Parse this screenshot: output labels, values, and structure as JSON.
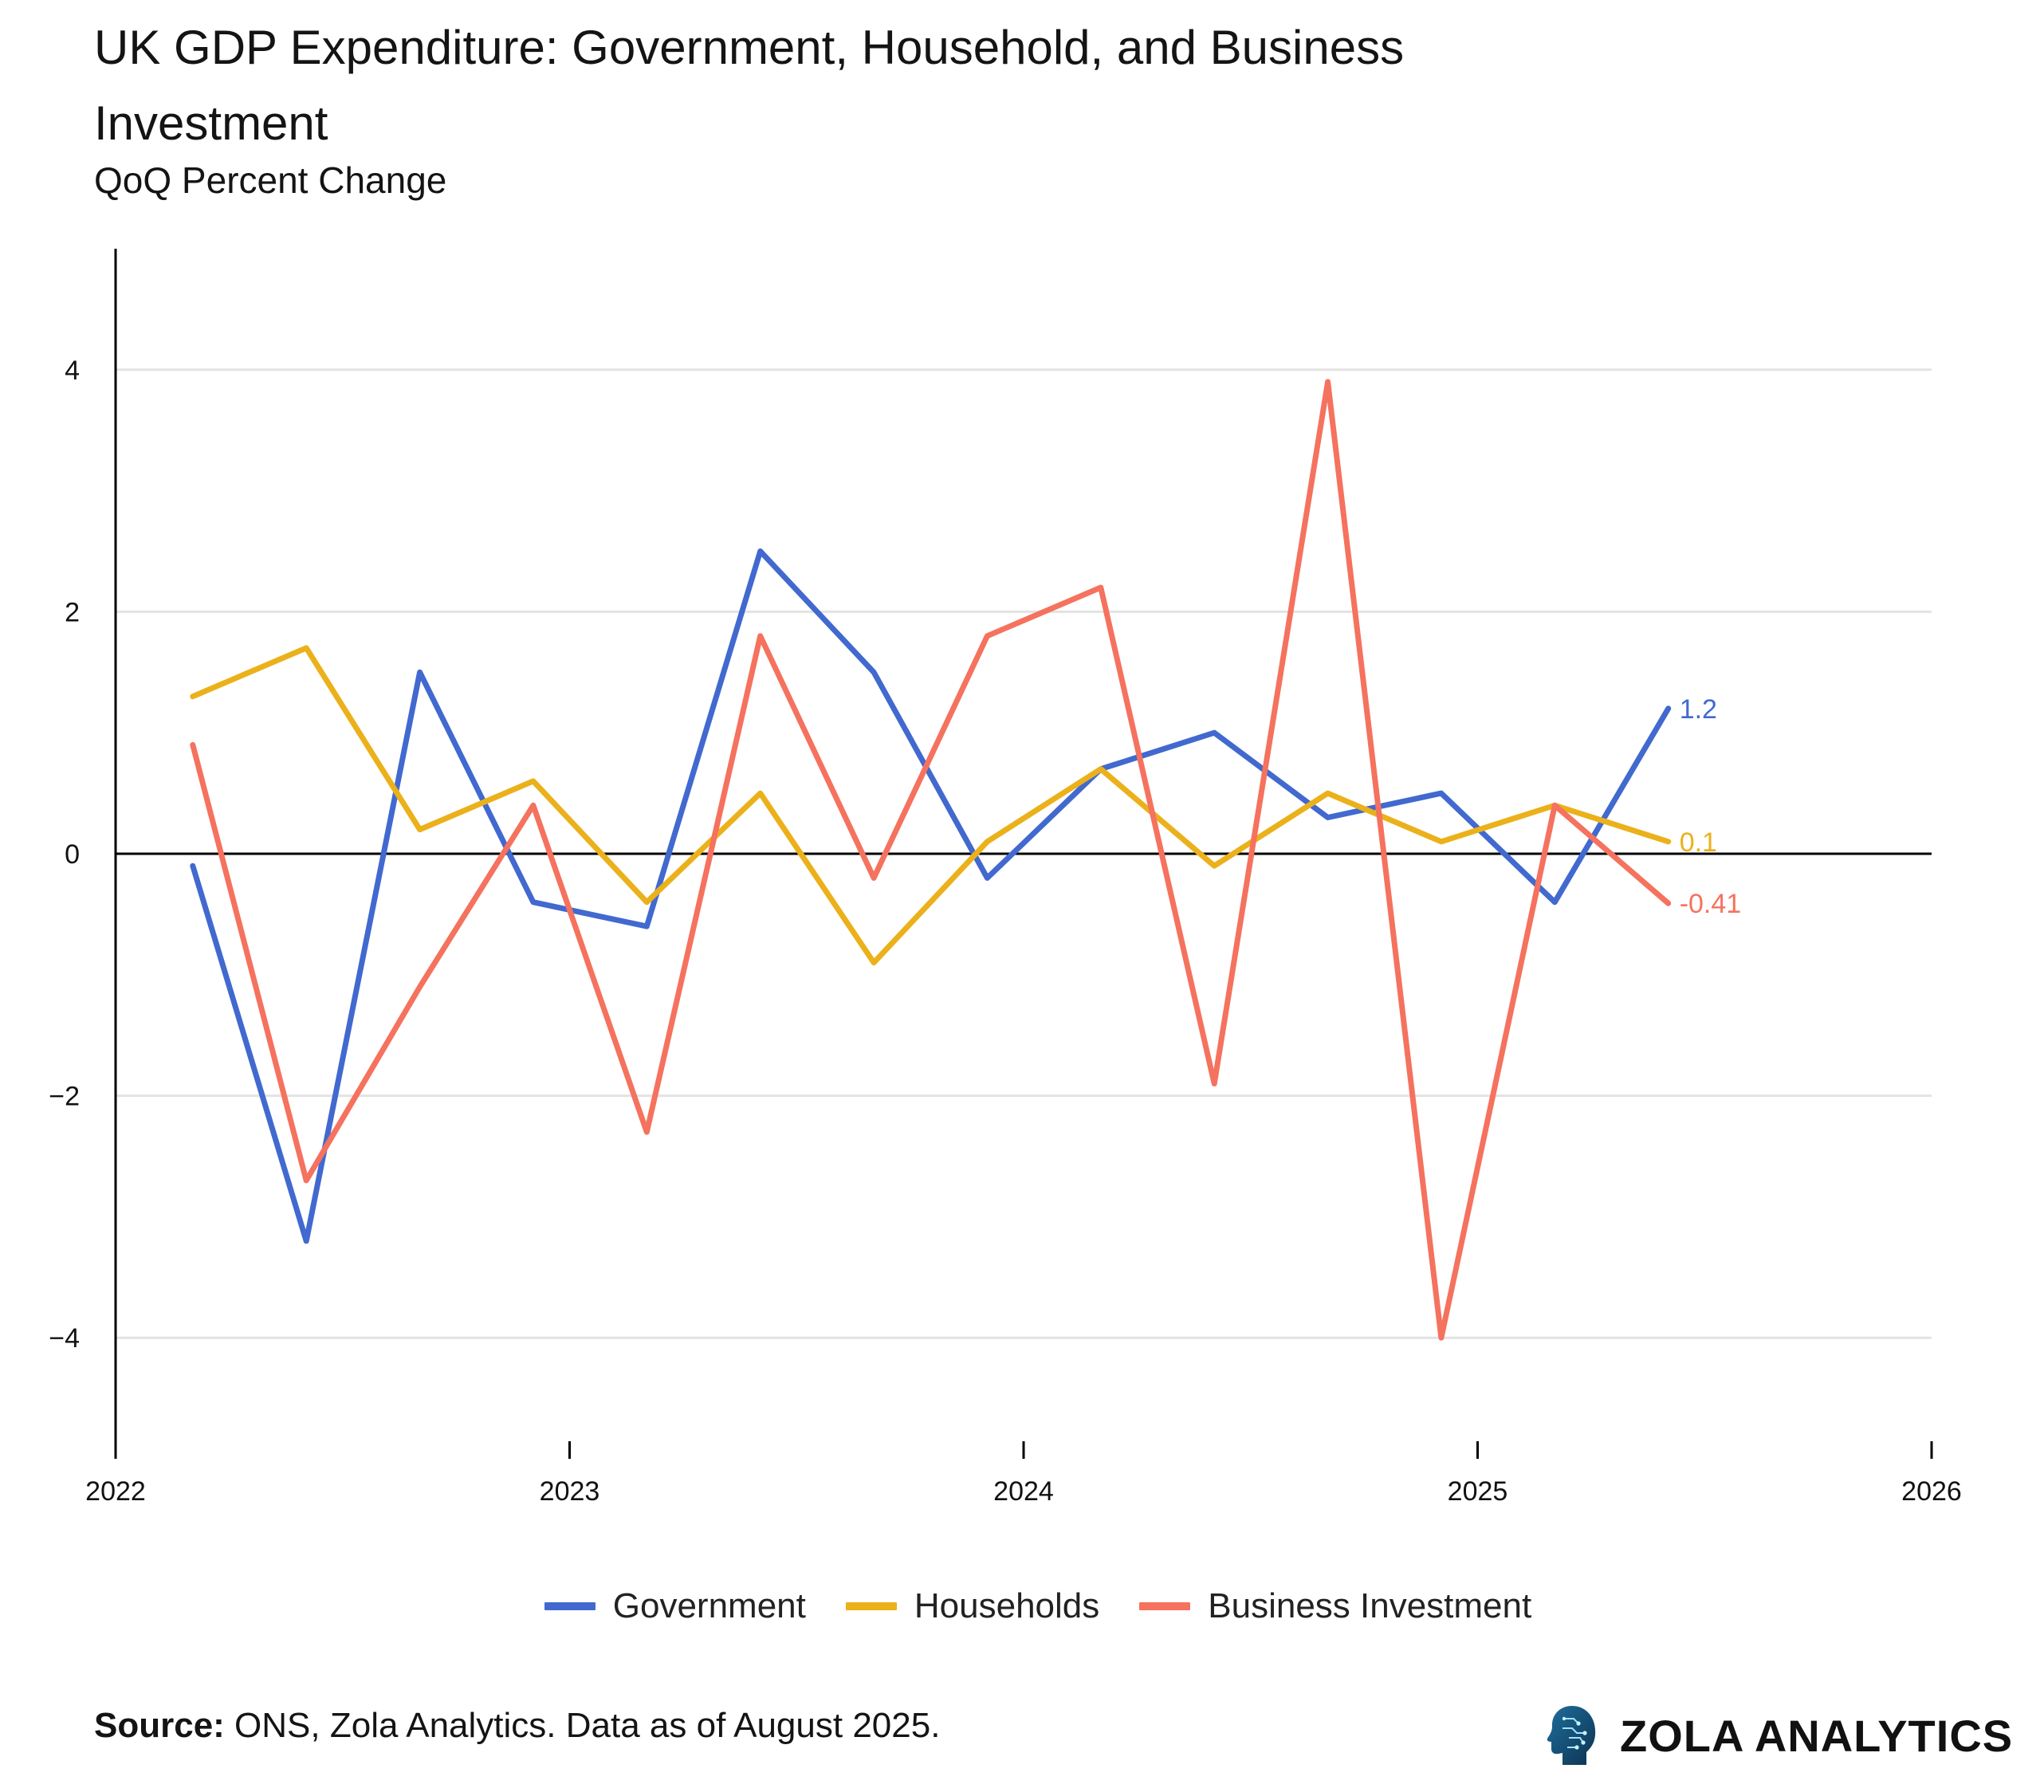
{
  "title": "UK GDP Expenditure: Government, Household, and Business Investment",
  "subtitle": "QoQ Percent Change",
  "source_label": "Source:",
  "source_text": " ONS, Zola Analytics. Data as of August 2025.",
  "brand": "ZOLA ANALYTICS",
  "chart_data": {
    "type": "line",
    "title": "UK GDP Expenditure: Government, Household, and Business Investment",
    "subtitle": "QoQ Percent Change",
    "xlabel": "",
    "ylabel": "",
    "x": [
      2022.17,
      2022.42,
      2022.67,
      2022.92,
      2023.17,
      2023.42,
      2023.67,
      2023.92,
      2024.17,
      2024.42,
      2024.67,
      2024.92,
      2025.17,
      2025.42
    ],
    "xlim": [
      2022,
      2026
    ],
    "ylim": [
      -5,
      5
    ],
    "xticks": [
      2022,
      2023,
      2024,
      2025,
      2026
    ],
    "xtick_labels": [
      "2022",
      "2023",
      "2024",
      "2025",
      "2026"
    ],
    "yticks": [
      4,
      2,
      0,
      -2,
      -4
    ],
    "ytick_labels": [
      "4",
      "2",
      "0",
      "−2",
      "−4"
    ],
    "series": [
      {
        "name": "Government",
        "color": "#4169cf",
        "values": [
          -0.1,
          -3.2,
          1.5,
          -0.4,
          -0.6,
          2.5,
          1.5,
          -0.2,
          0.7,
          1.0,
          0.3,
          0.5,
          -0.4,
          1.2
        ],
        "end_label": "1.2"
      },
      {
        "name": "Households",
        "color": "#ebb11b",
        "values": [
          1.3,
          1.7,
          0.2,
          0.6,
          -0.4,
          0.5,
          -0.9,
          0.1,
          0.7,
          -0.1,
          0.5,
          0.1,
          0.4,
          0.1
        ],
        "end_label": "0.1"
      },
      {
        "name": "Business Investment",
        "color": "#f5725e",
        "values": [
          0.9,
          -2.7,
          -1.1,
          0.4,
          -2.3,
          1.8,
          -0.2,
          1.8,
          2.2,
          -1.9,
          3.9,
          -4.0,
          0.4,
          -0.41
        ],
        "end_label": "-0.41"
      }
    ],
    "grid": true,
    "legend": "bottom-center"
  }
}
